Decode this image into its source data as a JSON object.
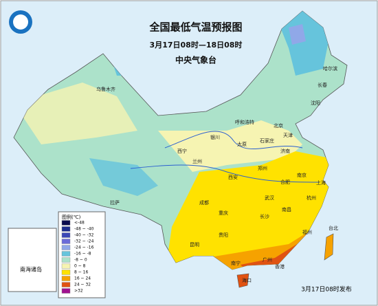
{
  "header": {
    "title": "全国最低气温预报图",
    "subtitle": "3月17日08时—18日08时",
    "agency": "中央气象台"
  },
  "legend": {
    "title": "图例(℃)",
    "items": [
      {
        "label": "<-48",
        "color": "#0b0b4e"
      },
      {
        "label": "-48 ~ -40",
        "color": "#1e2d8e"
      },
      {
        "label": "-40 ~ -32",
        "color": "#3c47b6"
      },
      {
        "label": "-32 ~ -24",
        "color": "#6b6bd8"
      },
      {
        "label": "-24 ~ -16",
        "color": "#90a8e8"
      },
      {
        "label": "-16 ~ -8",
        "color": "#66c4dc"
      },
      {
        "label": "-8 ~ 0",
        "color": "#ace2ca"
      },
      {
        "label": "0 ~ 8",
        "color": "#f6f4b2"
      },
      {
        "label": "8 ~ 16",
        "color": "#ffe200"
      },
      {
        "label": "16 ~ 24",
        "color": "#f6a200"
      },
      {
        "label": "24 ~ 32",
        "color": "#e05212"
      },
      {
        "label": ">32",
        "color": "#a0128f"
      }
    ]
  },
  "cities": [
    "乌鲁木齐",
    "哈尔滨",
    "长春",
    "沈阳",
    "呼和浩特",
    "北京",
    "天津",
    "石家庄",
    "太原",
    "银川",
    "西宁",
    "兰州",
    "济南",
    "郑州",
    "西安",
    "合肥",
    "南京",
    "上海",
    "杭州",
    "武汉",
    "成都",
    "重庆",
    "长沙",
    "南昌",
    "福州",
    "台北",
    "贵阳",
    "昆明",
    "南宁",
    "广州",
    "香港",
    "海口",
    "拉萨"
  ],
  "inset": "南海诸岛",
  "footer": "3月17日08时发布"
}
